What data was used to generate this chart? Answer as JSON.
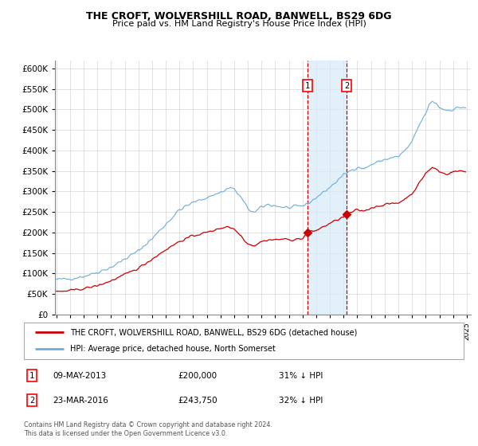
{
  "title": "THE CROFT, WOLVERSHILL ROAD, BANWELL, BS29 6DG",
  "subtitle": "Price paid vs. HM Land Registry's House Price Index (HPI)",
  "legend_line1": "THE CROFT, WOLVERSHILL ROAD, BANWELL, BS29 6DG (detached house)",
  "legend_line2": "HPI: Average price, detached house, North Somerset",
  "footnote": "Contains HM Land Registry data © Crown copyright and database right 2024.\nThis data is licensed under the Open Government Licence v3.0.",
  "sale1_date": "09-MAY-2013",
  "sale1_price": 200000,
  "sale1_label": "31% ↓ HPI",
  "sale2_date": "23-MAR-2016",
  "sale2_price": 243750,
  "sale2_label": "32% ↓ HPI",
  "hpi_color": "#6baed6",
  "price_color": "#cc0000",
  "sale_marker_color": "#cc0000",
  "vline_color": "#cc0000",
  "shade_color": "#d6eaf8",
  "ylim": [
    0,
    620000
  ],
  "yticks": [
    0,
    50000,
    100000,
    150000,
    200000,
    250000,
    300000,
    350000,
    400000,
    450000,
    500000,
    550000,
    600000
  ],
  "xlim_start": 1994.9,
  "xlim_end": 2025.3,
  "sale1_x": 2013.36,
  "sale2_x": 2016.22,
  "bg_color": "#f8f8f8",
  "grid_color": "#cccccc"
}
